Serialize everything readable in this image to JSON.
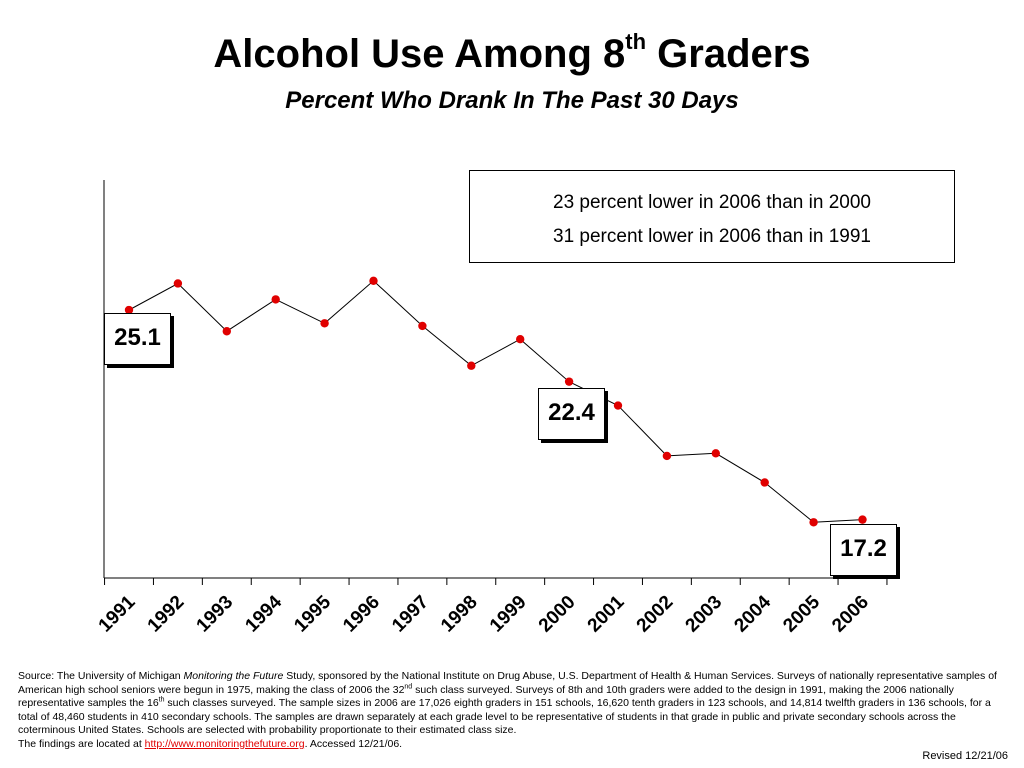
{
  "title": {
    "main": "Alcohol Use Among 8",
    "sup": "th",
    "main_end": " Graders",
    "subtitle": "Percent Who Drank In The Past 30 Days"
  },
  "annotations": {
    "line1": "23 percent lower in 2006 than in 2000",
    "line2": "31 percent lower in 2006 than in 1991",
    "label_1991": "25.1",
    "label_2000": "22.4",
    "label_2006": "17.2"
  },
  "chart_data": {
    "type": "line",
    "x": [
      "1991",
      "1992",
      "1993",
      "1994",
      "1995",
      "1996",
      "1997",
      "1998",
      "1999",
      "2000",
      "2001",
      "2002",
      "2003",
      "2004",
      "2005",
      "2006"
    ],
    "values": [
      25.1,
      26.1,
      24.3,
      25.5,
      24.6,
      26.2,
      24.5,
      23.0,
      24.0,
      22.4,
      21.5,
      19.6,
      19.7,
      18.6,
      17.1,
      17.2
    ],
    "ylim": [
      15,
      30
    ],
    "line_color": "#000000",
    "marker_color": "#e00000",
    "grid": false
  },
  "source": {
    "prefix": "Source: The University of Michigan ",
    "study_name": "Monitoring the Future",
    "text1": " Study, sponsored by the National Institute on Drug Abuse, U.S. Department of Health & Human Services. Surveys of nationally representative samples of American high school seniors were begun in 1975, making the class of 2006 the 32",
    "sup1": "nd",
    "text2": " such class surveyed. Surveys of 8th and 10th graders were added to the design in 1991, making the 2006 nationally representative samples the 16",
    "sup2": "th",
    "text3": " such classes surveyed. The sample sizes in 2006 are 17,026 eighth graders in 151 schools, 16,620 tenth graders in 123 schools, and 14,814 twelfth graders in 136 schools, for a total of 48,460 students in 410 secondary schools. The samples are drawn separately at each grade level to be representative of students in that grade in public and private secondary schools across the coterminous United States. Schools are selected with probability proportionate to their estimated class size.",
    "findings_prefix": "The findings are located at ",
    "link": "http://www.monitoringthefuture.org",
    "findings_suffix": ".  Accessed 12/21/06."
  },
  "revised": "Revised 12/21/06"
}
